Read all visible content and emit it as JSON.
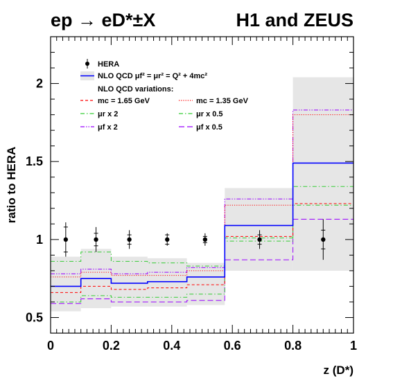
{
  "chart_data": {
    "type": "line",
    "title_left": "ep → eD*±X",
    "title_right": "H1 and ZEUS",
    "xlabel": "z (D*)",
    "ylabel": "ratio to HERA",
    "xlim": [
      0,
      1
    ],
    "ylim": [
      0.4,
      2.3
    ],
    "x_ticks": [
      "0",
      "0.2",
      "0.4",
      "0.6",
      "0.8",
      "1"
    ],
    "y_ticks": [
      "0.5",
      "1",
      "1.5",
      "2"
    ],
    "bin_edges": [
      0,
      0.1,
      0.2,
      0.32,
      0.45,
      0.575,
      0.8,
      1.0
    ],
    "uncertainty_band": {
      "low": [
        0.54,
        0.56,
        0.57,
        0.57,
        0.58,
        0.8,
        0.8
      ],
      "high": [
        0.89,
        0.94,
        0.89,
        0.88,
        0.85,
        1.33,
        2.04
      ]
    },
    "data_points": [
      {
        "x": 0.05,
        "y": 1.0,
        "err_inner": 0.08,
        "err_outer": 0.11
      },
      {
        "x": 0.15,
        "y": 1.0,
        "err_inner": 0.04,
        "err_outer": 0.08
      },
      {
        "x": 0.26,
        "y": 1.0,
        "err_inner": 0.03,
        "err_outer": 0.06
      },
      {
        "x": 0.385,
        "y": 1.0,
        "err_inner": 0.03,
        "err_outer": 0.04
      },
      {
        "x": 0.51,
        "y": 1.0,
        "err_inner": 0.02,
        "err_outer": 0.04
      },
      {
        "x": 0.69,
        "y": 1.0,
        "err_inner": 0.03,
        "err_outer": 0.06
      },
      {
        "x": 0.9,
        "y": 1.0,
        "err_inner": 0.06,
        "err_outer": 0.13
      }
    ],
    "series": [
      {
        "name": "NLO QCD",
        "color": "#0000ff",
        "dash": "solid",
        "width": 1.6,
        "values": [
          0.7,
          0.75,
          0.72,
          0.73,
          0.76,
          1.09,
          1.49
        ]
      },
      {
        "name": "mc = 1.65 GeV",
        "color": "#ff0000",
        "dash": "dashed",
        "width": 1,
        "values": [
          0.66,
          0.7,
          0.68,
          0.69,
          0.71,
          1.02,
          1.23
        ]
      },
      {
        "name": "mc = 1.35 GeV",
        "color": "#ff0000",
        "dash": "dotted",
        "width": 1,
        "values": [
          0.76,
          0.79,
          0.77,
          0.77,
          0.8,
          1.22,
          1.8
        ]
      },
      {
        "name": "μr x 2",
        "color": "#33cc33",
        "dash": "dashdot",
        "width": 1,
        "values": [
          0.86,
          0.92,
          0.86,
          0.85,
          0.83,
          1.01,
          1.34
        ]
      },
      {
        "name": "μr x 0.5",
        "color": "#33cc33",
        "dash": "dashdot",
        "width": 1,
        "values": [
          0.6,
          0.64,
          0.63,
          0.63,
          0.65,
          0.99,
          1.22
        ]
      },
      {
        "name": "μf x 2",
        "color": "#9900ff",
        "dash": "dashdotdot",
        "width": 1,
        "values": [
          0.78,
          0.81,
          0.78,
          0.79,
          0.82,
          1.26,
          1.83
        ]
      },
      {
        "name": "μf x 0.5",
        "color": "#9900ff",
        "dash": "longdash",
        "width": 1,
        "values": [
          0.59,
          0.62,
          0.6,
          0.6,
          0.61,
          0.87,
          1.13
        ]
      }
    ],
    "legend": {
      "placement": "top-left",
      "hera": "HERA",
      "nlo_label": "NLO QCD  μ",
      "nlo_formula": "f² = μr² = Q² + 4mc²",
      "variations_title": "NLO QCD variations:",
      "entries": [
        "mc = 1.65 GeV",
        "mc = 1.35 GeV",
        "μr x 2",
        "μr x 0.5",
        "μf x 2",
        "μf x 0.5"
      ]
    },
    "colors": {
      "band": "#e6e6e6",
      "nlo": "#0000ff",
      "mc": "#ff0000",
      "mur": "#33cc33",
      "muf": "#9900ff"
    }
  }
}
